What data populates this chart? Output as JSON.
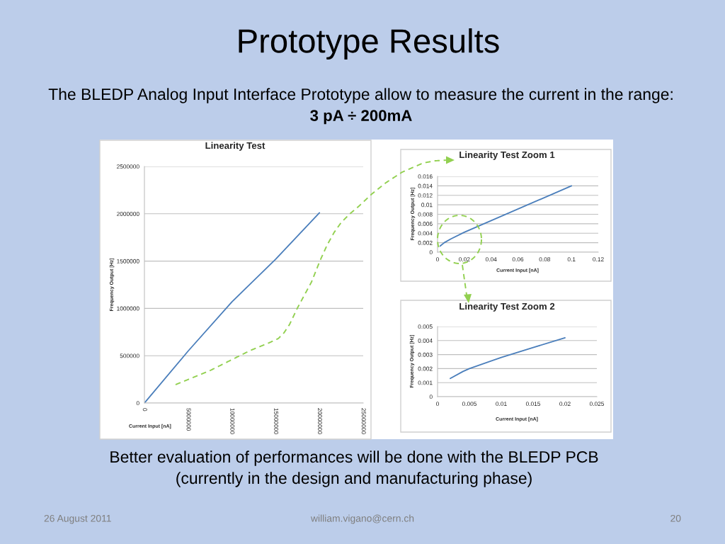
{
  "chart_data": [
    {
      "type": "other",
      "title": "Prototype Results",
      "subtitle": "The BLEDP Analog Input Interface Prototype allow to measure the current in the range:",
      "annotations": [
        "3 pA ÷ 200mA",
        "Better evaluation of performances will be done with the BLEDP PCB",
        "(currently in the design and manufacturing phase)",
        "26 August 2011",
        "william.vigano@cern.ch",
        "20"
      ]
    },
    {
      "type": "line",
      "title": "Linearity Test",
      "xlabel": "Current Input [nA]",
      "ylabel": "Frequency Output [Hz]",
      "x": [
        0,
        5000000,
        10000000,
        15000000,
        20000000
      ],
      "series": [
        {
          "color": "#4a7ebb",
          "values": [
            0,
            550000,
            1070000,
            1520000,
            2010000
          ]
        }
      ],
      "xlim": [
        0,
        25000000
      ],
      "xticks": [
        0,
        5000000,
        10000000,
        15000000,
        20000000,
        25000000
      ],
      "ylim": [
        0,
        2500000
      ],
      "yticks": [
        0,
        500000,
        1000000,
        1500000,
        2000000,
        2500000
      ],
      "grid": "y"
    },
    {
      "type": "line",
      "title": "Linearity Test Zoom 1",
      "xlabel": "Current Input [nA]",
      "ylabel": "Frequency Output [Hz]",
      "x": [
        0.002,
        0.005,
        0.01,
        0.02,
        0.1
      ],
      "series": [
        {
          "color": "#4a7ebb",
          "values": [
            0.0013,
            0.002,
            0.0028,
            0.0042,
            0.014
          ]
        }
      ],
      "xlim": [
        0,
        0.12
      ],
      "xticks": [
        0,
        0.02,
        0.04,
        0.06,
        0.08,
        0.1,
        0.12
      ],
      "ylim": [
        0,
        0.016
      ],
      "yticks": [
        0,
        0.002,
        0.004,
        0.006,
        0.008,
        0.01,
        0.012,
        0.014,
        0.016
      ],
      "grid": "y"
    },
    {
      "type": "line",
      "title": "Linearity Test Zoom 2",
      "xlabel": "Current Input [nA]",
      "ylabel": "Frequency Output [Hz]",
      "x": [
        0.002,
        0.004,
        0.005,
        0.01,
        0.015,
        0.02
      ],
      "series": [
        {
          "color": "#4a7ebb",
          "values": [
            0.0013,
            0.0018,
            0.002,
            0.0028,
            0.0035,
            0.0042
          ]
        }
      ],
      "xlim": [
        0,
        0.025
      ],
      "xticks": [
        0,
        0.005,
        0.01,
        0.015,
        0.02,
        0.025
      ],
      "ylim": [
        0,
        0.005
      ],
      "yticks": [
        0,
        0.001,
        0.002,
        0.003,
        0.004,
        0.005
      ],
      "grid": "y"
    }
  ]
}
